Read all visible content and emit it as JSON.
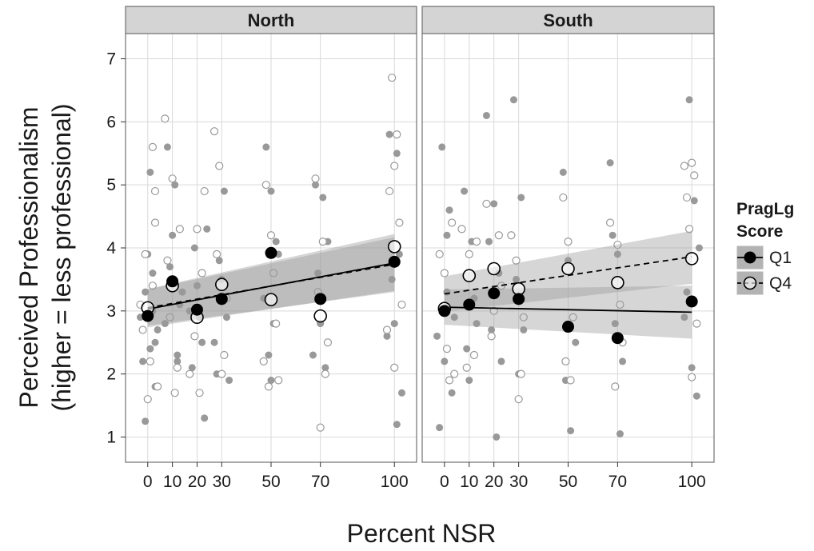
{
  "chart_data": {
    "type": "scatter",
    "xlabel": "Percent NSR",
    "ylabel": [
      "Perceived Professionalism",
      "(higher = less professional)"
    ],
    "ylim": [
      0.6,
      7.4
    ],
    "xlim": [
      -9,
      109
    ],
    "x_ticks": [
      0,
      10,
      20,
      30,
      50,
      70,
      100
    ],
    "y_ticks": [
      1,
      2,
      3,
      4,
      5,
      6,
      7
    ],
    "grid": true,
    "legend": {
      "title_lines": [
        "PragLg",
        "Score"
      ],
      "position": "right",
      "entries": [
        {
          "label": "Q1",
          "marker": "filled-circle",
          "line": "solid",
          "color": "#000000"
        },
        {
          "label": "Q4",
          "marker": "open-circle",
          "line": "dashed",
          "color": "#000000"
        }
      ]
    },
    "colors": {
      "panel_background": "#ffffff",
      "grid": "#d9d9d9",
      "strip": "#d4d4d4",
      "band": "#999999",
      "raw_points": "#999999"
    },
    "panels": [
      {
        "name": "North",
        "means": {
          "Q1": {
            "x": [
              0,
              10,
              20,
              30,
              50,
              70,
              100
            ],
            "y": [
              2.92,
              3.47,
              3.02,
              3.19,
              3.92,
              3.19,
              3.78
            ]
          },
          "Q4": {
            "x": [
              0,
              10,
              20,
              30,
              50,
              70,
              100
            ],
            "y": [
              3.05,
              3.4,
              2.9,
              3.42,
              3.18,
              2.92,
              4.02
            ]
          }
        },
        "fits": {
          "Q1": {
            "x": [
              0,
              100
            ],
            "y": [
              3.03,
              3.76
            ],
            "band_lo": [
              2.74,
              3.32
            ],
            "band_hi": [
              3.35,
              4.22
            ]
          },
          "Q4": {
            "x": [
              0,
              100
            ],
            "y": [
              3.05,
              3.74
            ],
            "band_lo": [
              2.77,
              3.3
            ],
            "band_hi": [
              3.34,
              4.17
            ]
          }
        },
        "raw": {
          "Q1": [
            [
              -2,
              2.2
            ],
            [
              1,
              2.4
            ],
            [
              3,
              1.8
            ],
            [
              -1,
              3.3
            ],
            [
              2,
              3.0
            ],
            [
              4,
              2.7
            ],
            [
              -3,
              2.9
            ],
            [
              1,
              5.2
            ],
            [
              2,
              3.6
            ],
            [
              -1,
              1.25
            ],
            [
              3,
              2.5
            ],
            [
              0,
              3.9
            ],
            [
              8,
              5.6
            ],
            [
              11,
              5.0
            ],
            [
              12,
              2.2
            ],
            [
              9,
              3.7
            ],
            [
              13,
              3.1
            ],
            [
              7,
              2.8
            ],
            [
              10,
              4.2
            ],
            [
              12,
              2.3
            ],
            [
              14,
              3.3
            ],
            [
              18,
              2.1
            ],
            [
              21,
              2.9
            ],
            [
              22,
              2.5
            ],
            [
              20,
              3.4
            ],
            [
              19,
              4.0
            ],
            [
              23,
              1.3
            ],
            [
              24,
              4.3
            ],
            [
              17,
              3.0
            ],
            [
              28,
              2.0
            ],
            [
              31,
              4.9
            ],
            [
              32,
              2.9
            ],
            [
              30,
              3.5
            ],
            [
              29,
              3.8
            ],
            [
              33,
              1.9
            ],
            [
              27,
              2.5
            ],
            [
              48,
              5.6
            ],
            [
              50,
              4.9
            ],
            [
              52,
              4.1
            ],
            [
              49,
              2.3
            ],
            [
              51,
              2.8
            ],
            [
              47,
              3.2
            ],
            [
              53,
              3.9
            ],
            [
              50,
              1.9
            ],
            [
              68,
              5.0
            ],
            [
              71,
              4.8
            ],
            [
              72,
              2.1
            ],
            [
              69,
              3.6
            ],
            [
              70,
              2.8
            ],
            [
              73,
              4.1
            ],
            [
              67,
              2.3
            ],
            [
              98,
              5.8
            ],
            [
              101,
              5.5
            ],
            [
              102,
              4.4
            ],
            [
              99,
              3.5
            ],
            [
              100,
              2.8
            ],
            [
              103,
              1.7
            ],
            [
              101,
              1.2
            ],
            [
              97,
              2.6
            ],
            [
              102,
              3.9
            ]
          ],
          "Q4": [
            [
              -1,
              3.9
            ],
            [
              2,
              5.6
            ],
            [
              3,
              4.9
            ],
            [
              -2,
              2.7
            ],
            [
              1,
              2.2
            ],
            [
              4,
              1.8
            ],
            [
              0,
              1.6
            ],
            [
              2,
              3.4
            ],
            [
              -3,
              3.1
            ],
            [
              3,
              4.4
            ],
            [
              7,
              6.05
            ],
            [
              10,
              5.1
            ],
            [
              12,
              2.1
            ],
            [
              9,
              2.9
            ],
            [
              11,
              1.7
            ],
            [
              8,
              3.8
            ],
            [
              13,
              4.3
            ],
            [
              17,
              2.0
            ],
            [
              20,
              4.3
            ],
            [
              22,
              3.6
            ],
            [
              19,
              2.6
            ],
            [
              21,
              1.7
            ],
            [
              23,
              4.9
            ],
            [
              27,
              5.85
            ],
            [
              29,
              5.3
            ],
            [
              31,
              2.3
            ],
            [
              30,
              2.0
            ],
            [
              32,
              3.2
            ],
            [
              28,
              3.9
            ],
            [
              48,
              5.0
            ],
            [
              50,
              4.2
            ],
            [
              52,
              2.8
            ],
            [
              49,
              1.8
            ],
            [
              51,
              3.6
            ],
            [
              47,
              2.2
            ],
            [
              53,
              1.9
            ],
            [
              68,
              5.1
            ],
            [
              71,
              4.1
            ],
            [
              72,
              2.0
            ],
            [
              70,
              1.15
            ],
            [
              69,
              3.3
            ],
            [
              73,
              2.5
            ],
            [
              99,
              6.7
            ],
            [
              100,
              5.3
            ],
            [
              101,
              5.8
            ],
            [
              98,
              4.9
            ],
            [
              102,
              4.4
            ],
            [
              100,
              2.1
            ],
            [
              97,
              2.7
            ],
            [
              103,
              3.1
            ]
          ]
        }
      },
      {
        "name": "South",
        "means": {
          "Q1": {
            "x": [
              0,
              10,
              20,
              30,
              50,
              70,
              100
            ],
            "y": [
              3.0,
              3.1,
              3.28,
              3.19,
              2.75,
              2.57,
              3.15
            ]
          },
          "Q4": {
            "x": [
              0,
              10,
              20,
              30,
              50,
              70,
              100
            ],
            "y": [
              3.04,
              3.56,
              3.67,
              3.35,
              3.67,
              3.45,
              3.83
            ]
          }
        },
        "fits": {
          "Q1": {
            "x": [
              0,
              100
            ],
            "y": [
              3.06,
              2.98
            ],
            "band_lo": [
              2.78,
              2.56
            ],
            "band_hi": [
              3.34,
              3.4
            ]
          },
          "Q4": {
            "x": [
              0,
              100
            ],
            "y": [
              3.27,
              3.86
            ],
            "band_lo": [
              2.99,
              3.43
            ],
            "band_hi": [
              3.55,
              4.27
            ]
          }
        },
        "raw": {
          "Q1": [
            [
              -1,
              5.6
            ],
            [
              2,
              4.6
            ],
            [
              1,
              3.3
            ],
            [
              -3,
              2.6
            ],
            [
              0,
              2.2
            ],
            [
              3,
              1.7
            ],
            [
              -2,
              1.15
            ],
            [
              4,
              2.9
            ],
            [
              1,
              4.2
            ],
            [
              8,
              4.9
            ],
            [
              11,
              4.1
            ],
            [
              12,
              3.2
            ],
            [
              9,
              2.4
            ],
            [
              10,
              1.9
            ],
            [
              13,
              2.8
            ],
            [
              17,
              6.1
            ],
            [
              20,
              4.7
            ],
            [
              22,
              3.6
            ],
            [
              19,
              2.7
            ],
            [
              21,
              1.0
            ],
            [
              23,
              2.2
            ],
            [
              18,
              4.1
            ],
            [
              28,
              6.35
            ],
            [
              31,
              4.8
            ],
            [
              29,
              3.5
            ],
            [
              30,
              2.0
            ],
            [
              32,
              2.7
            ],
            [
              48,
              5.2
            ],
            [
              50,
              3.8
            ],
            [
              52,
              2.9
            ],
            [
              49,
              1.9
            ],
            [
              51,
              1.1
            ],
            [
              53,
              2.5
            ],
            [
              67,
              5.35
            ],
            [
              70,
              3.9
            ],
            [
              72,
              2.2
            ],
            [
              71,
              1.05
            ],
            [
              69,
              2.8
            ],
            [
              68,
              4.2
            ],
            [
              99,
              6.35
            ],
            [
              101,
              4.75
            ],
            [
              98,
              3.3
            ],
            [
              100,
              2.1
            ],
            [
              102,
              1.65
            ],
            [
              97,
              2.9
            ],
            [
              103,
              4.0
            ]
          ],
          "Q4": [
            [
              -2,
              3.9
            ],
            [
              1,
              2.4
            ],
            [
              2,
              1.9
            ],
            [
              3,
              4.4
            ],
            [
              0,
              3.6
            ],
            [
              4,
              2.0
            ],
            [
              7,
              4.3
            ],
            [
              10,
              3.9
            ],
            [
              12,
              2.3
            ],
            [
              9,
              2.1
            ],
            [
              13,
              4.1
            ],
            [
              17,
              4.7
            ],
            [
              20,
              3.0
            ],
            [
              22,
              4.2
            ],
            [
              19,
              2.6
            ],
            [
              23,
              3.4
            ],
            [
              27,
              4.2
            ],
            [
              29,
              3.8
            ],
            [
              31,
              2.0
            ],
            [
              30,
              1.6
            ],
            [
              32,
              2.9
            ],
            [
              48,
              4.8
            ],
            [
              50,
              4.1
            ],
            [
              52,
              2.9
            ],
            [
              49,
              2.2
            ],
            [
              51,
              1.9
            ],
            [
              67,
              4.4
            ],
            [
              70,
              4.05
            ],
            [
              72,
              2.5
            ],
            [
              69,
              1.8
            ],
            [
              71,
              3.1
            ],
            [
              97,
              5.3
            ],
            [
              100,
              5.35
            ],
            [
              101,
              5.15
            ],
            [
              98,
              4.8
            ],
            [
              99,
              4.3
            ],
            [
              102,
              2.8
            ],
            [
              100,
              1.95
            ]
          ]
        }
      }
    ]
  }
}
